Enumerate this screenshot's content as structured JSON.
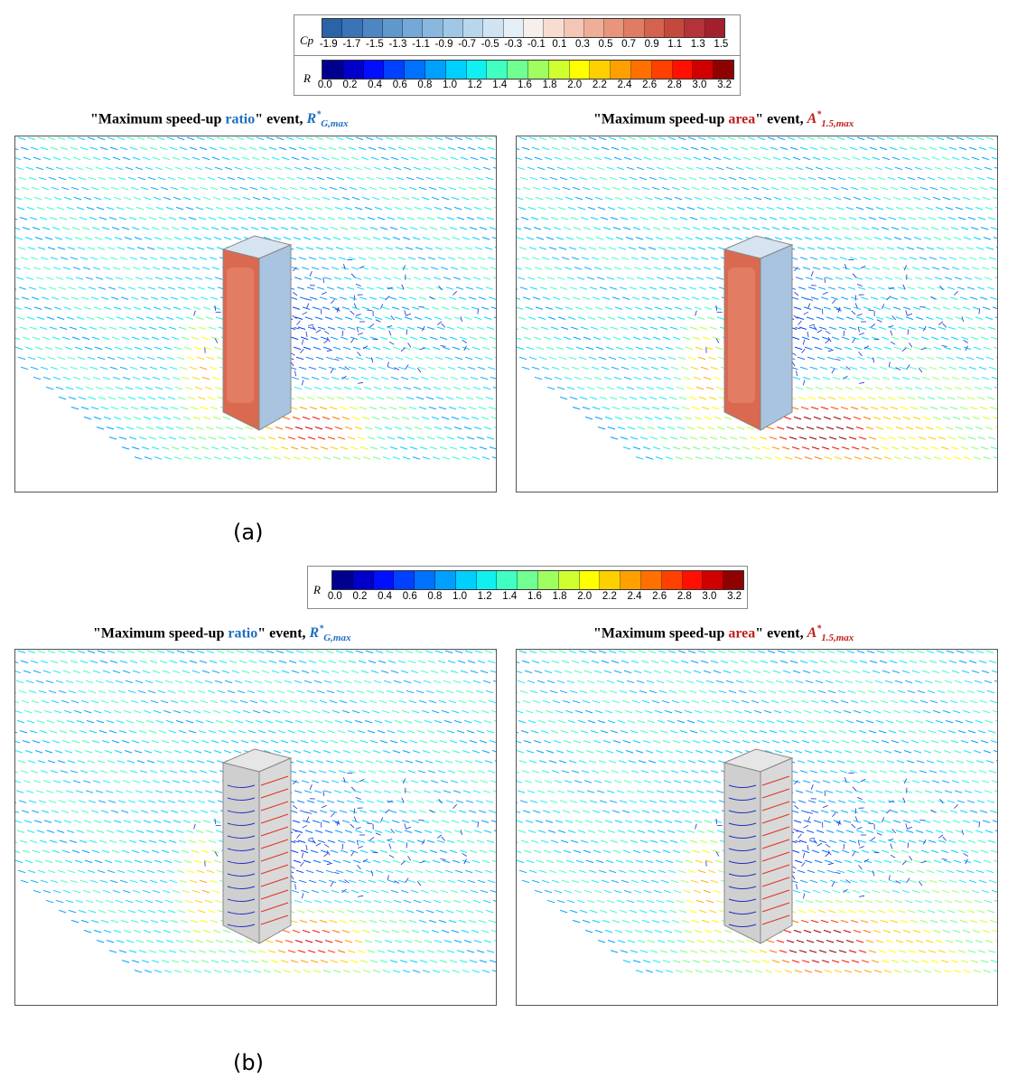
{
  "colors": {
    "cp_scale": [
      "#2b63a8",
      "#3b74b6",
      "#4d86c2",
      "#6097cc",
      "#74a8d6",
      "#89b8de",
      "#a0c8e6",
      "#b8d6ec",
      "#cfe3f2",
      "#e5eff7",
      "#f6efec",
      "#f7dcd2",
      "#f4c6b5",
      "#efae98",
      "#e8957c",
      "#df7c63",
      "#d3624e",
      "#c4493c",
      "#b5323a",
      "#a41f2e"
    ],
    "r_scale": [
      "#00008f",
      "#0000c8",
      "#0010ff",
      "#0040ff",
      "#0070ff",
      "#00a0ff",
      "#00d0ff",
      "#10f0f0",
      "#40ffc0",
      "#70ff90",
      "#a0ff60",
      "#d0ff30",
      "#ffff00",
      "#ffd000",
      "#ffa000",
      "#ff7000",
      "#ff4000",
      "#ff1000",
      "#d00000",
      "#8f0000"
    ]
  },
  "legend_top": {
    "cp_symbol": "Cp",
    "cp_ticks": [
      "-1.9",
      "-1.7",
      "-1.5",
      "-1.3",
      "-1.1",
      "-0.9",
      "-0.7",
      "-0.5",
      "-0.3",
      "-0.1",
      "0.1",
      "0.3",
      "0.5",
      "0.7",
      "0.9",
      "1.1",
      "1.3",
      "1.5"
    ],
    "r_symbol": "R",
    "r_ticks": [
      "0.0",
      "0.2",
      "0.4",
      "0.6",
      "0.8",
      "1.0",
      "1.2",
      "1.4",
      "1.6",
      "1.8",
      "2.0",
      "2.2",
      "2.4",
      "2.6",
      "2.8",
      "3.0",
      "3.2"
    ]
  },
  "legend_mid": {
    "r_symbol": "R",
    "r_ticks": [
      "0.0",
      "0.2",
      "0.4",
      "0.6",
      "0.8",
      "1.0",
      "1.2",
      "1.4",
      "1.6",
      "1.8",
      "2.0",
      "2.2",
      "2.4",
      "2.6",
      "2.8",
      "3.0",
      "3.2"
    ]
  },
  "titles": {
    "ratio": {
      "prefix": "\"Maximum speed-up ",
      "highlight": "ratio",
      "suffix": "\" event, ",
      "symbol": "R",
      "sup": "*",
      "sub": "G,max"
    },
    "area": {
      "prefix": "\"Maximum speed-up ",
      "highlight": "area",
      "suffix": "\" event, ",
      "symbol": "A",
      "sup": "*",
      "sub": "1.5,max"
    }
  },
  "labels": {
    "a": "(a)",
    "b": "(b)"
  }
}
